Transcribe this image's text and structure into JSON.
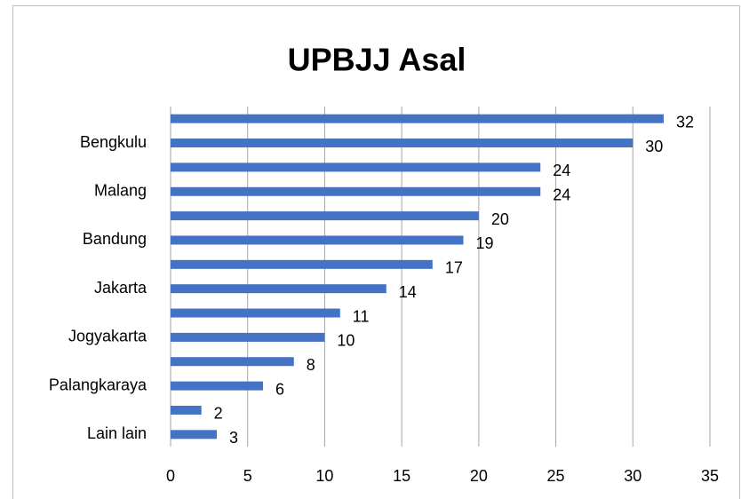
{
  "chart_data": {
    "type": "bar",
    "orientation": "horizontal",
    "title": "UPBJJ Asal",
    "categories": [
      null,
      "Bengkulu",
      null,
      "Malang",
      null,
      "Bandung",
      null,
      "Jakarta",
      null,
      "Jogyakarta",
      null,
      "Palangkaraya",
      null,
      "Lain lain"
    ],
    "values": [
      32,
      30,
      24,
      24,
      20,
      19,
      17,
      14,
      11,
      10,
      8,
      6,
      2,
      3
    ],
    "color": "#4472c4",
    "xlim": [
      0,
      35
    ],
    "xticks": [
      0,
      5,
      10,
      15,
      20,
      25,
      30,
      35
    ],
    "grid": true
  }
}
